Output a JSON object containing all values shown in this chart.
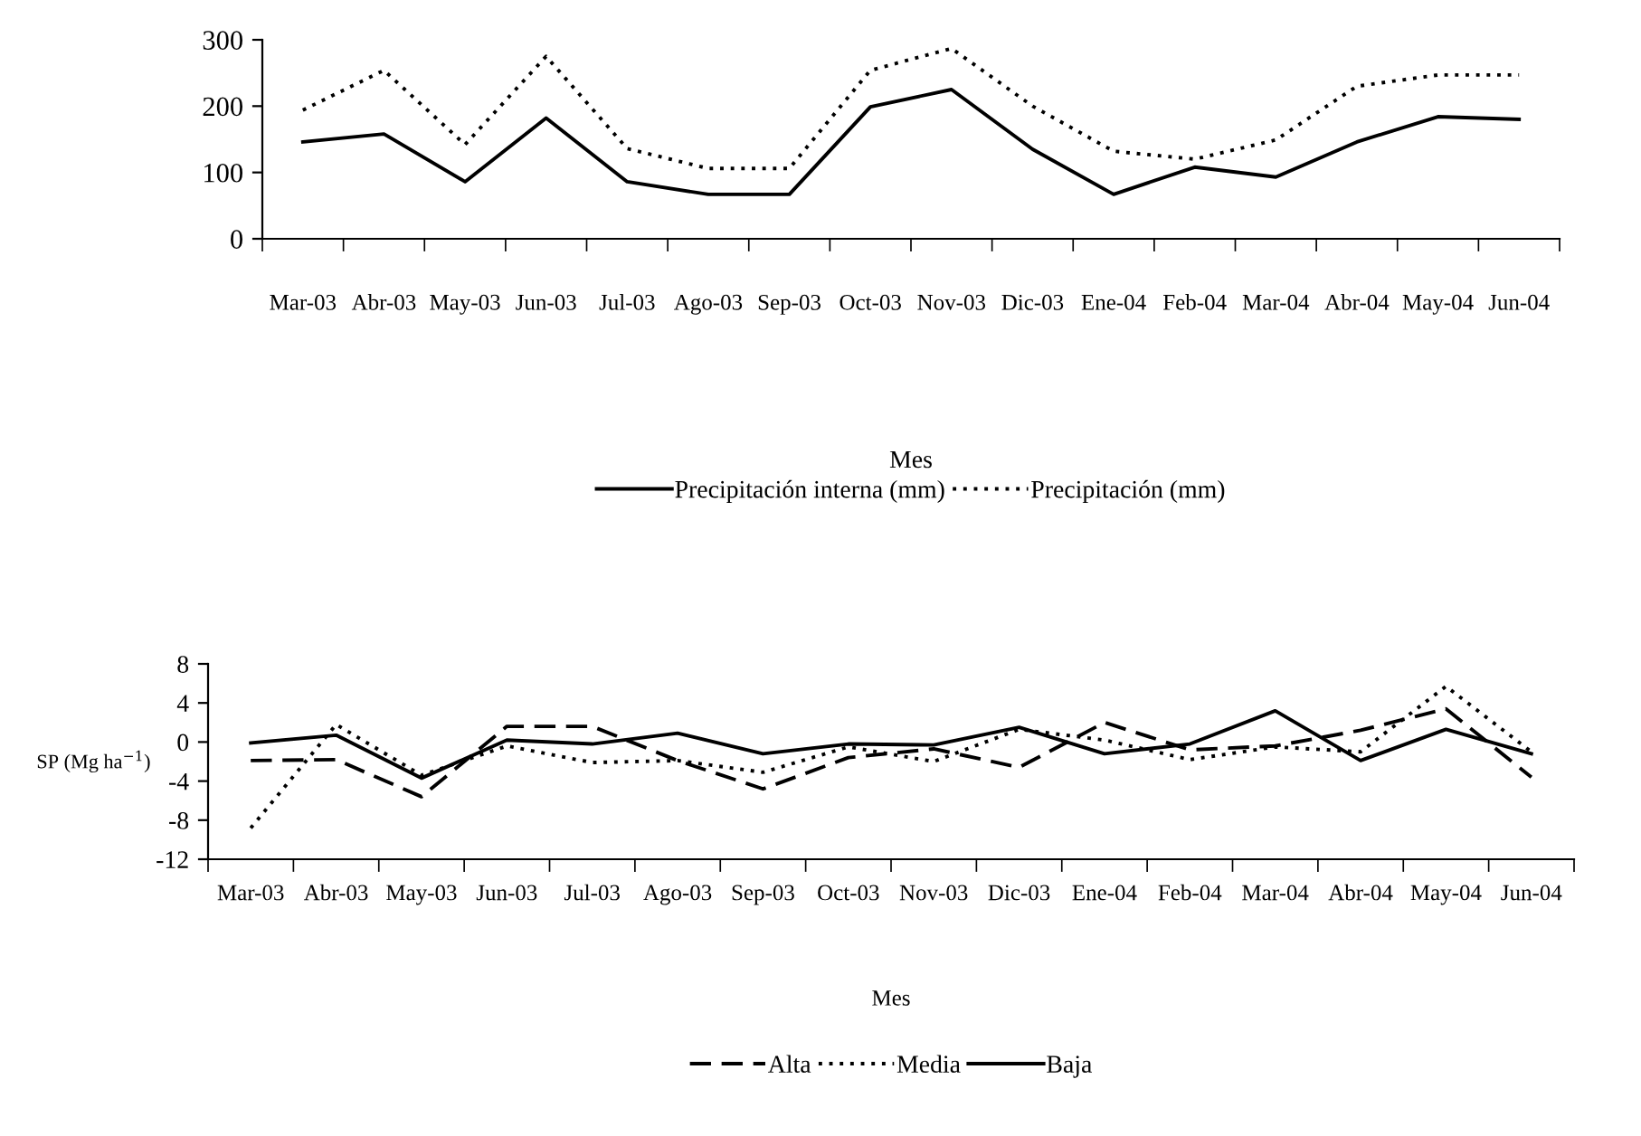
{
  "chart_data": [
    {
      "type": "line",
      "xlabel": "Mes",
      "categories": [
        "Mar-03",
        "Abr-03",
        "May-03",
        "Jun-03",
        "Jul-03",
        "Ago-03",
        "Sep-03",
        "Oct-03",
        "Nov-03",
        "Dic-03",
        "Ene-04",
        "Feb-04",
        "Mar-04",
        "Abr-04",
        "May-04",
        "Jun-04"
      ],
      "series": [
        {
          "name": "Precipitación interna (mm)",
          "color": "#000000",
          "line_style": "solid",
          "values": [
            146,
            158,
            86,
            182,
            86,
            67,
            67,
            199,
            225,
            135,
            67,
            108,
            93,
            146,
            184,
            180
          ]
        },
        {
          "name": "Precipitación (mm)",
          "color": "#000000",
          "line_style": "dotted",
          "values": [
            194,
            254,
            142,
            275,
            136,
            106,
            106,
            254,
            287,
            200,
            132,
            120,
            149,
            230,
            247,
            247
          ]
        }
      ],
      "ylim": [
        0,
        300
      ],
      "yticks": [
        0,
        100,
        200,
        300
      ],
      "grid": false,
      "legend": "bottom",
      "marker": "none"
    },
    {
      "type": "line",
      "xlabel": "Mes",
      "ylabel": "SP (Mg ha$^{−1}$)",
      "categories": [
        "Mar-03",
        "Abr-03",
        "May-03",
        "Jun-03",
        "Jul-03",
        "Ago-03",
        "Sep-03",
        "Oct-03",
        "Nov-03",
        "Dic-03",
        "Ene-04",
        "Feb-04",
        "Mar-04",
        "Abr-04",
        "May-04",
        "Jun-04"
      ],
      "series": [
        {
          "name": "Alta",
          "color": "#000000",
          "line_style": "dashed",
          "values": [
            -1.9,
            -1.8,
            -5.6,
            1.6,
            1.6,
            -1.9,
            -4.8,
            -1.6,
            -0.7,
            -2.6,
            2.0,
            -0.8,
            -0.4,
            1.2,
            3.4,
            -3.6
          ]
        },
        {
          "name": "Media",
          "color": "#000000",
          "line_style": "dotted",
          "values": [
            -8.8,
            1.8,
            -3.4,
            -0.4,
            -2.1,
            -1.9,
            -3.1,
            -0.5,
            -2.0,
            1.3,
            0.2,
            -1.8,
            -0.5,
            -1.0,
            5.7,
            -1.0
          ]
        },
        {
          "name": "Baja",
          "color": "#000000",
          "line_style": "solid",
          "values": [
            -0.1,
            0.7,
            -3.7,
            0.2,
            -0.2,
            0.9,
            -1.2,
            -0.2,
            -0.3,
            1.5,
            -1.2,
            -0.2,
            3.2,
            -1.9,
            1.3,
            -1.2
          ]
        }
      ],
      "ylim": [
        -12,
        8
      ],
      "yticks": [
        {
          "value": -12,
          "label": "-12"
        },
        {
          "value": -8,
          "label": "-8"
        },
        {
          "value": -4,
          "label": "-4"
        },
        0,
        4,
        8
      ],
      "grid": false,
      "legend": "bottom",
      "marker": "none"
    }
  ]
}
